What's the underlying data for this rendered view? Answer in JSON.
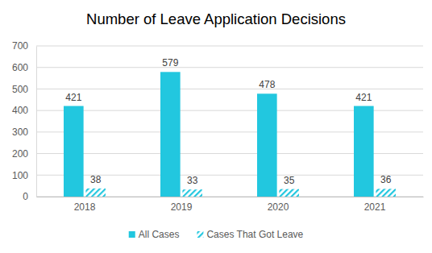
{
  "chart_data": {
    "type": "bar",
    "title": "Number of Leave Application Decisions",
    "categories": [
      "2018",
      "2019",
      "2020",
      "2021"
    ],
    "series": [
      {
        "name": "All Cases",
        "color": "#22c7df",
        "values": [
          421,
          579,
          478,
          421
        ]
      },
      {
        "name": "Cases That Got Leave",
        "color": "#22c7df",
        "values": [
          38,
          33,
          35,
          36
        ]
      }
    ],
    "ylim": [
      0,
      700
    ],
    "yticks": [
      0,
      100,
      200,
      300,
      400,
      500,
      600,
      700
    ],
    "grid": true,
    "legend": "bottom",
    "data_labels": true
  }
}
